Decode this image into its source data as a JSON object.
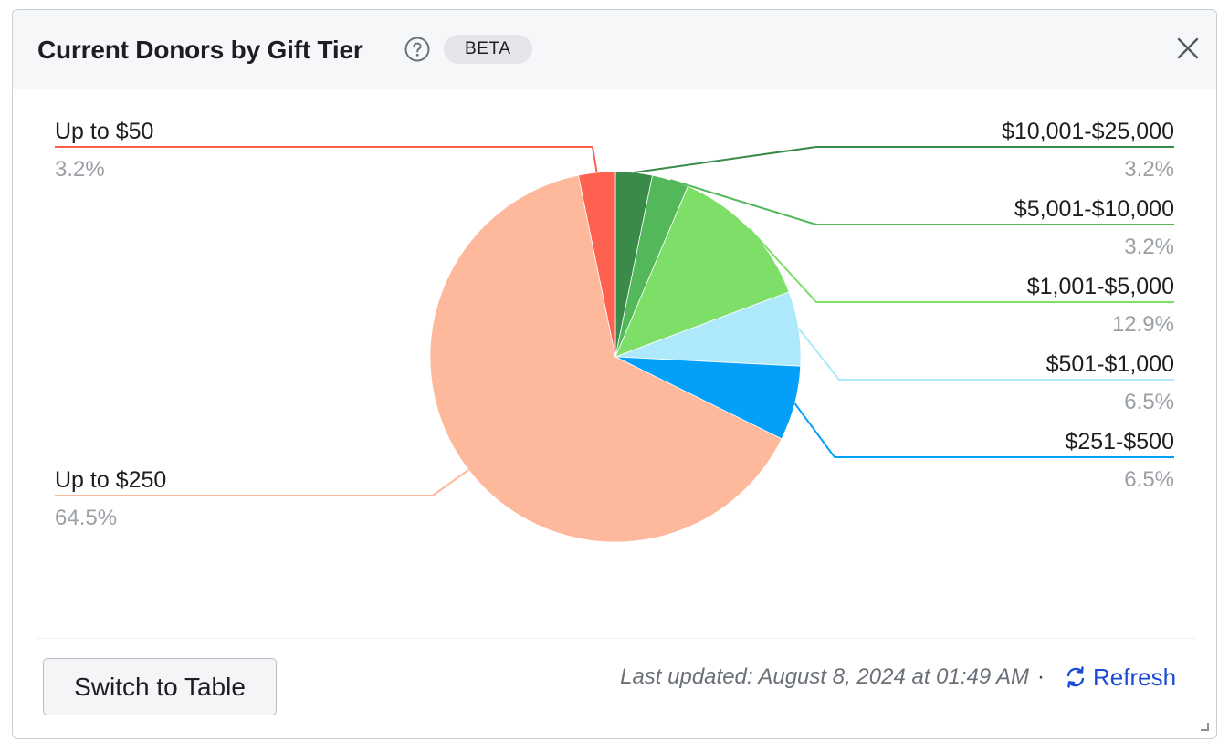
{
  "header": {
    "title": "Current Donors by Gift Tier",
    "badge": "BETA"
  },
  "icons": {
    "help": "help-circle-icon",
    "close": "close-icon",
    "refresh": "refresh-icon"
  },
  "footer": {
    "switch_label": "Switch to Table",
    "last_updated": "Last updated: August 8, 2024 at 01:49 AM",
    "separator": "·",
    "refresh_label": "Refresh"
  },
  "chart_data": {
    "type": "pie",
    "title": "Current Donors by Gift Tier",
    "start_angle_deg": 0,
    "direction": "clockwise",
    "slices": [
      {
        "label": "$10,001-$25,000",
        "percent": "3.2%",
        "value": 3.2,
        "color": "#3a8a4a",
        "side": "right"
      },
      {
        "label": "$5,001-$10,000",
        "percent": "3.2%",
        "value": 3.2,
        "color": "#52b85a",
        "side": "right"
      },
      {
        "label": "$1,001-$5,000",
        "percent": "12.9%",
        "value": 12.9,
        "color": "#7ddf68",
        "side": "right"
      },
      {
        "label": "$501-$1,000",
        "percent": "6.5%",
        "value": 6.5,
        "color": "#ade8fb",
        "side": "right"
      },
      {
        "label": "$251-$500",
        "percent": "6.5%",
        "value": 6.5,
        "color": "#039ff9",
        "side": "right"
      },
      {
        "label": "Up to $250",
        "percent": "64.5%",
        "value": 64.5,
        "color": "#feb89c",
        "side": "left"
      },
      {
        "label": "Up to $50",
        "percent": "3.2%",
        "value": 3.2,
        "color": "#fe6150",
        "side": "left"
      }
    ]
  }
}
